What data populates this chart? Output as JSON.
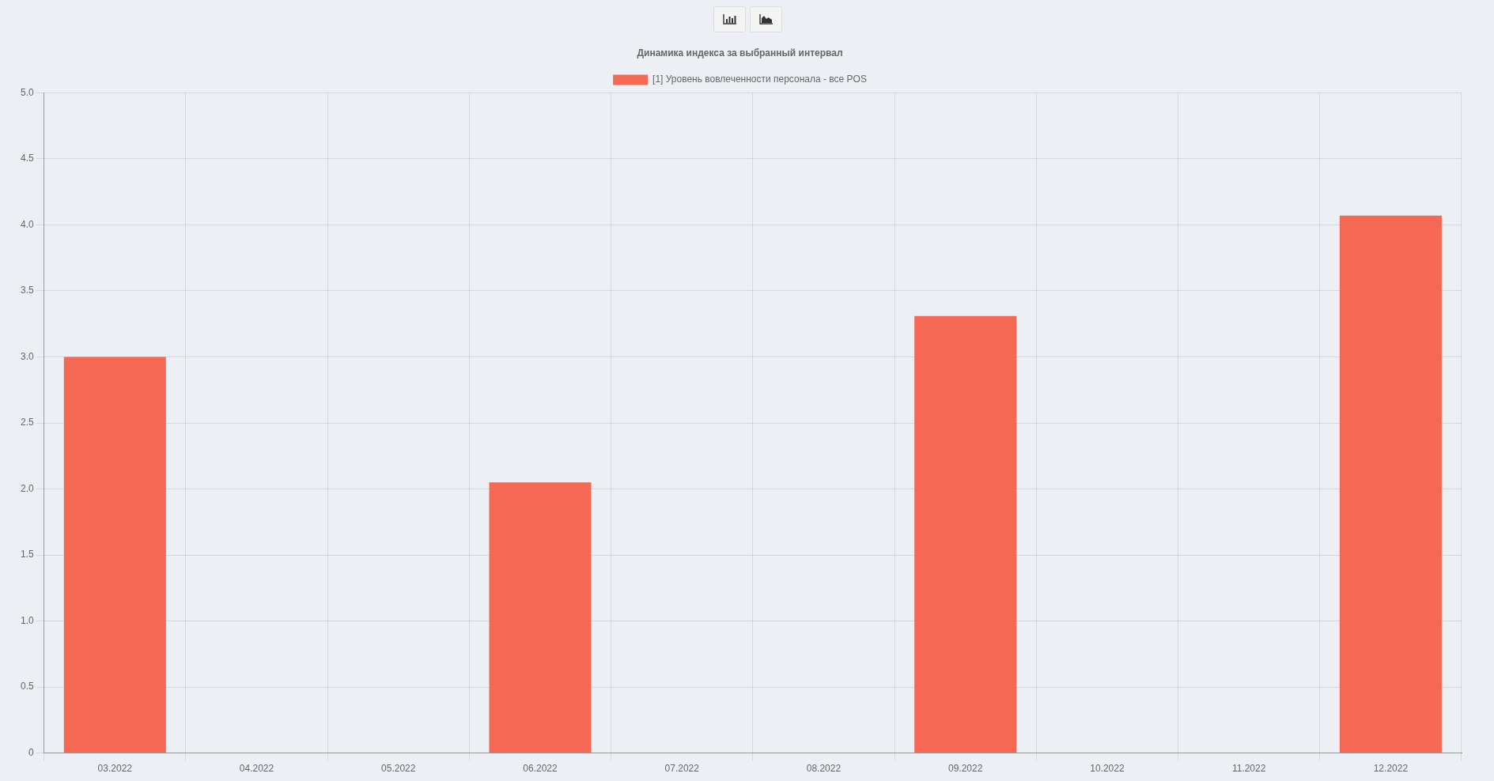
{
  "chart_data": {
    "type": "bar",
    "title": "Динамика индекса за выбранный интервал",
    "categories": [
      "03.2022",
      "04.2022",
      "05.2022",
      "06.2022",
      "07.2022",
      "08.2022",
      "09.2022",
      "10.2022",
      "11.2022",
      "12.2022"
    ],
    "series": [
      {
        "name": "[1] Уровень вовлеченности персонала - все POS",
        "color": "#f56954",
        "values": [
          3.0,
          null,
          null,
          2.05,
          null,
          null,
          3.31,
          null,
          null,
          4.07
        ]
      }
    ],
    "ylim": [
      0,
      5
    ],
    "yticks": [
      0,
      0.5,
      {
        "value": 1,
        "label": "1.0"
      },
      1.5,
      {
        "value": 2,
        "label": "2.0"
      },
      2.5,
      {
        "value": 3,
        "label": "3.0"
      },
      3.5,
      {
        "value": 4,
        "label": "4.0"
      },
      4.5,
      {
        "value": 5,
        "label": "5.0"
      }
    ],
    "grid": true,
    "legend": "top"
  }
}
